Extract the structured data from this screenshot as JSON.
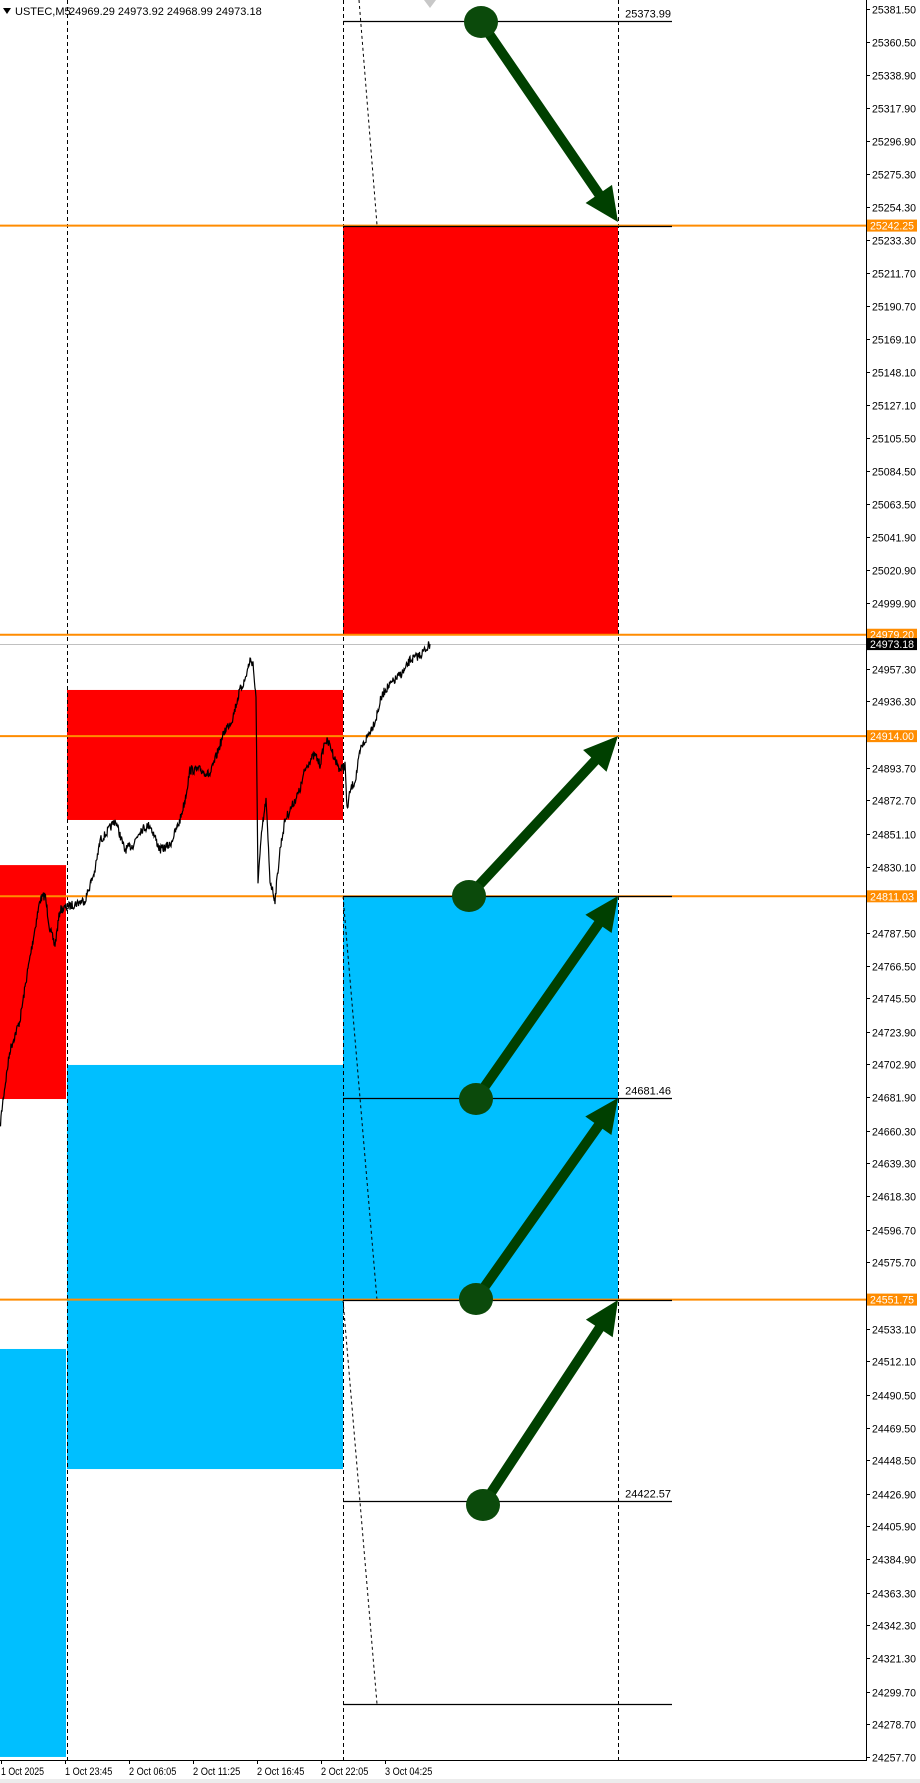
{
  "header": {
    "symbol": "USTEC,M5",
    "ohlc": "24969.29 24973.92 24968.99 24973.18",
    "menu_icon": "triangle-down-icon"
  },
  "chart_data": {
    "type": "line",
    "title": "USTEC,M5",
    "price_axis": {
      "range": [
        24257.7,
        25381.5
      ],
      "ticks": [
        "25381.50",
        "25360.50",
        "25338.90",
        "25317.90",
        "25296.90",
        "25275.30",
        "25254.30",
        "25233.30",
        "25211.70",
        "25190.70",
        "25169.10",
        "25148.10",
        "25127.10",
        "25105.50",
        "25084.50",
        "25063.50",
        "25041.90",
        "25020.90",
        "24999.90",
        "24957.30",
        "24936.30",
        "24893.70",
        "24872.70",
        "24851.10",
        "24830.10",
        "24787.50",
        "24766.50",
        "24745.50",
        "24723.90",
        "24702.90",
        "24681.90",
        "24660.30",
        "24639.30",
        "24618.30",
        "24596.70",
        "24575.70",
        "24533.10",
        "24512.10",
        "24490.50",
        "24469.50",
        "24448.50",
        "24426.90",
        "24405.90",
        "24384.90",
        "24363.30",
        "24342.30",
        "24321.30",
        "24299.70",
        "24278.70",
        "24257.70"
      ]
    },
    "time_axis": {
      "ticks": [
        "1 Oct 2025",
        "1 Oct 23:45",
        "2 Oct 06:05",
        "2 Oct 11:25",
        "2 Oct 16:45",
        "2 Oct 22:05",
        "3 Oct 04:25"
      ]
    },
    "current_price": {
      "value": 24973.18,
      "label": "24973.18",
      "color": "#000000"
    },
    "series": [
      [
        "2025-10-01 18:25",
        24662.7
      ],
      [
        "2025-10-01 18:40",
        24680.1
      ],
      [
        "2025-10-01 19:15",
        24712.2
      ],
      [
        "2025-10-01 20:05",
        24731.5
      ],
      [
        "2025-10-01 20:40",
        24760.5
      ],
      [
        "2025-10-01 21:10",
        24783.0
      ],
      [
        "2025-10-01 21:45",
        24808.7
      ],
      [
        "2025-10-01 22:10",
        24811.9
      ],
      [
        "2025-10-01 22:35",
        24789.4
      ],
      [
        "2025-10-01 23:00",
        24779.7
      ],
      [
        "2025-10-01 23:25",
        24802.2
      ],
      [
        "2025-10-02 00:05",
        24804.2
      ],
      [
        "2025-10-02 01:50",
        24808.7
      ],
      [
        "2025-10-02 02:50",
        24828.0
      ],
      [
        "2025-10-02 03:20",
        24847.3
      ],
      [
        "2025-10-02 03:50",
        24850.5
      ],
      [
        "2025-10-02 04:50",
        24860.1
      ],
      [
        "2025-10-02 05:45",
        24840.8
      ],
      [
        "2025-10-02 06:30",
        24844.0
      ],
      [
        "2025-10-02 07:05",
        24853.7
      ],
      [
        "2025-10-02 07:55",
        24856.9
      ],
      [
        "2025-10-02 08:45",
        24840.8
      ],
      [
        "2025-10-02 09:35",
        24844.0
      ],
      [
        "2025-10-02 10:25",
        24860.1
      ],
      [
        "2025-10-02 10:50",
        24873.0
      ],
      [
        "2025-10-02 11:15",
        24892.3
      ],
      [
        "2025-10-02 12:05",
        24892.3
      ],
      [
        "2025-10-02 12:55",
        24889.0
      ],
      [
        "2025-10-02 13:20",
        24898.7
      ],
      [
        "2025-10-02 14:10",
        24918.0
      ],
      [
        "2025-10-02 14:45",
        24924.4
      ],
      [
        "2025-10-02 15:25",
        24943.7
      ],
      [
        "2025-10-02 15:50",
        24950.1
      ],
      [
        "2025-10-02 16:15",
        24963.0
      ],
      [
        "2025-10-02 16:30",
        24961.0
      ],
      [
        "2025-10-02 16:45",
        24937.3
      ],
      [
        "2025-10-02 16:55",
        24821.5
      ],
      [
        "2025-10-02 17:15",
        24853.7
      ],
      [
        "2025-10-02 17:35",
        24873.0
      ],
      [
        "2025-10-02 17:55",
        24821.5
      ],
      [
        "2025-10-02 18:20",
        24808.7
      ],
      [
        "2025-10-02 18:45",
        24840.8
      ],
      [
        "2025-10-02 19:10",
        24860.1
      ],
      [
        "2025-10-02 19:35",
        24866.5
      ],
      [
        "2025-10-02 20:00",
        24873.0
      ],
      [
        "2025-10-02 20:25",
        24879.4
      ],
      [
        "2025-10-02 20:50",
        24892.3
      ],
      [
        "2025-10-02 21:15",
        24898.7
      ],
      [
        "2025-10-02 21:40",
        24902.0
      ],
      [
        "2025-10-02 22:05",
        24895.5
      ],
      [
        "2025-10-02 22:35",
        24911.5
      ],
      [
        "2025-10-02 23:05",
        24908.3
      ],
      [
        "2025-10-02 23:35",
        24898.7
      ],
      [
        "2025-10-03 00:05",
        24892.3
      ],
      [
        "2025-10-03 00:35",
        24895.5
      ],
      [
        "2025-10-03 00:45",
        24866.0
      ],
      [
        "2025-10-03 01:05",
        24879.4
      ],
      [
        "2025-10-03 01:35",
        24885.8
      ],
      [
        "2025-10-03 02:05",
        24905.1
      ],
      [
        "2025-10-03 02:35",
        24911.5
      ],
      [
        "2025-10-03 03:05",
        24918.0
      ],
      [
        "2025-10-03 03:35",
        24924.4
      ],
      [
        "2025-10-03 04:05",
        24937.3
      ],
      [
        "2025-10-03 04:30",
        24943.7
      ],
      [
        "2025-10-03 04:55",
        24946.9
      ],
      [
        "2025-10-03 05:20",
        24950.1
      ],
      [
        "2025-10-03 05:45",
        24953.3
      ],
      [
        "2025-10-03 06:10",
        24956.5
      ],
      [
        "2025-10-03 06:35",
        24963.0
      ],
      [
        "2025-10-03 07:00",
        24964.3
      ],
      [
        "2025-10-03 07:25",
        24966.2
      ],
      [
        "2025-10-03 07:50",
        24969.4
      ],
      [
        "2025-10-03 08:15",
        24973.18
      ]
    ],
    "zones": [
      {
        "period": "1 Oct",
        "color": "#ff0000",
        "top": 24831.1,
        "bottom": 24680.7
      },
      {
        "period": "1 Oct",
        "color": "#00bfff",
        "top": 24520.0,
        "bottom": 24257.7
      },
      {
        "period": "2 Oct",
        "color": "#ff0000",
        "top": 24943.7,
        "bottom": 24860.1
      },
      {
        "period": "2 Oct",
        "color": "#00bfff",
        "top": 24702.6,
        "bottom": 24442.8
      },
      {
        "period": "3 Oct",
        "color": "#ff0000",
        "top": 25242.25,
        "bottom": 24979.2
      },
      {
        "period": "3 Oct",
        "color": "#00bfff",
        "top": 24811.03,
        "bottom": 24551.75
      }
    ],
    "orange_levels": [
      {
        "value": 25242.25,
        "label": "25242.25"
      },
      {
        "value": 24979.2,
        "label": "24979.20"
      },
      {
        "value": 24914.0,
        "label": "24914.00"
      },
      {
        "value": 24811.03,
        "label": "24811.03"
      },
      {
        "value": 24551.75,
        "label": "24551.75"
      }
    ],
    "level_lines": [
      {
        "value": 25373.99,
        "label": "25373.99"
      },
      {
        "value": 25242.25,
        "label": ""
      },
      {
        "value": 24811.03,
        "label": ""
      },
      {
        "value": 24681.46,
        "label": "24681.46"
      },
      {
        "value": 24551.75,
        "label": ""
      },
      {
        "value": 24422.57,
        "label": "24422.57"
      },
      {
        "value": 24292.0,
        "label": ""
      }
    ],
    "arrows": [
      {
        "from": 25373.99,
        "to": 25242.25,
        "direction": "down"
      },
      {
        "from": 24811.03,
        "to": 24914.0,
        "direction": "up"
      },
      {
        "from": 24681.46,
        "to": 24811.03,
        "direction": "up"
      },
      {
        "from": 24551.75,
        "to": 24681.46,
        "direction": "up"
      },
      {
        "from": 24422.57,
        "to": 24551.75,
        "direction": "up"
      }
    ],
    "colors": {
      "orange": "#ff8c00",
      "supply": "#ff0000",
      "demand": "#00bfff",
      "arrow": "#004000",
      "price_line": "#000000"
    },
    "grid": false
  }
}
